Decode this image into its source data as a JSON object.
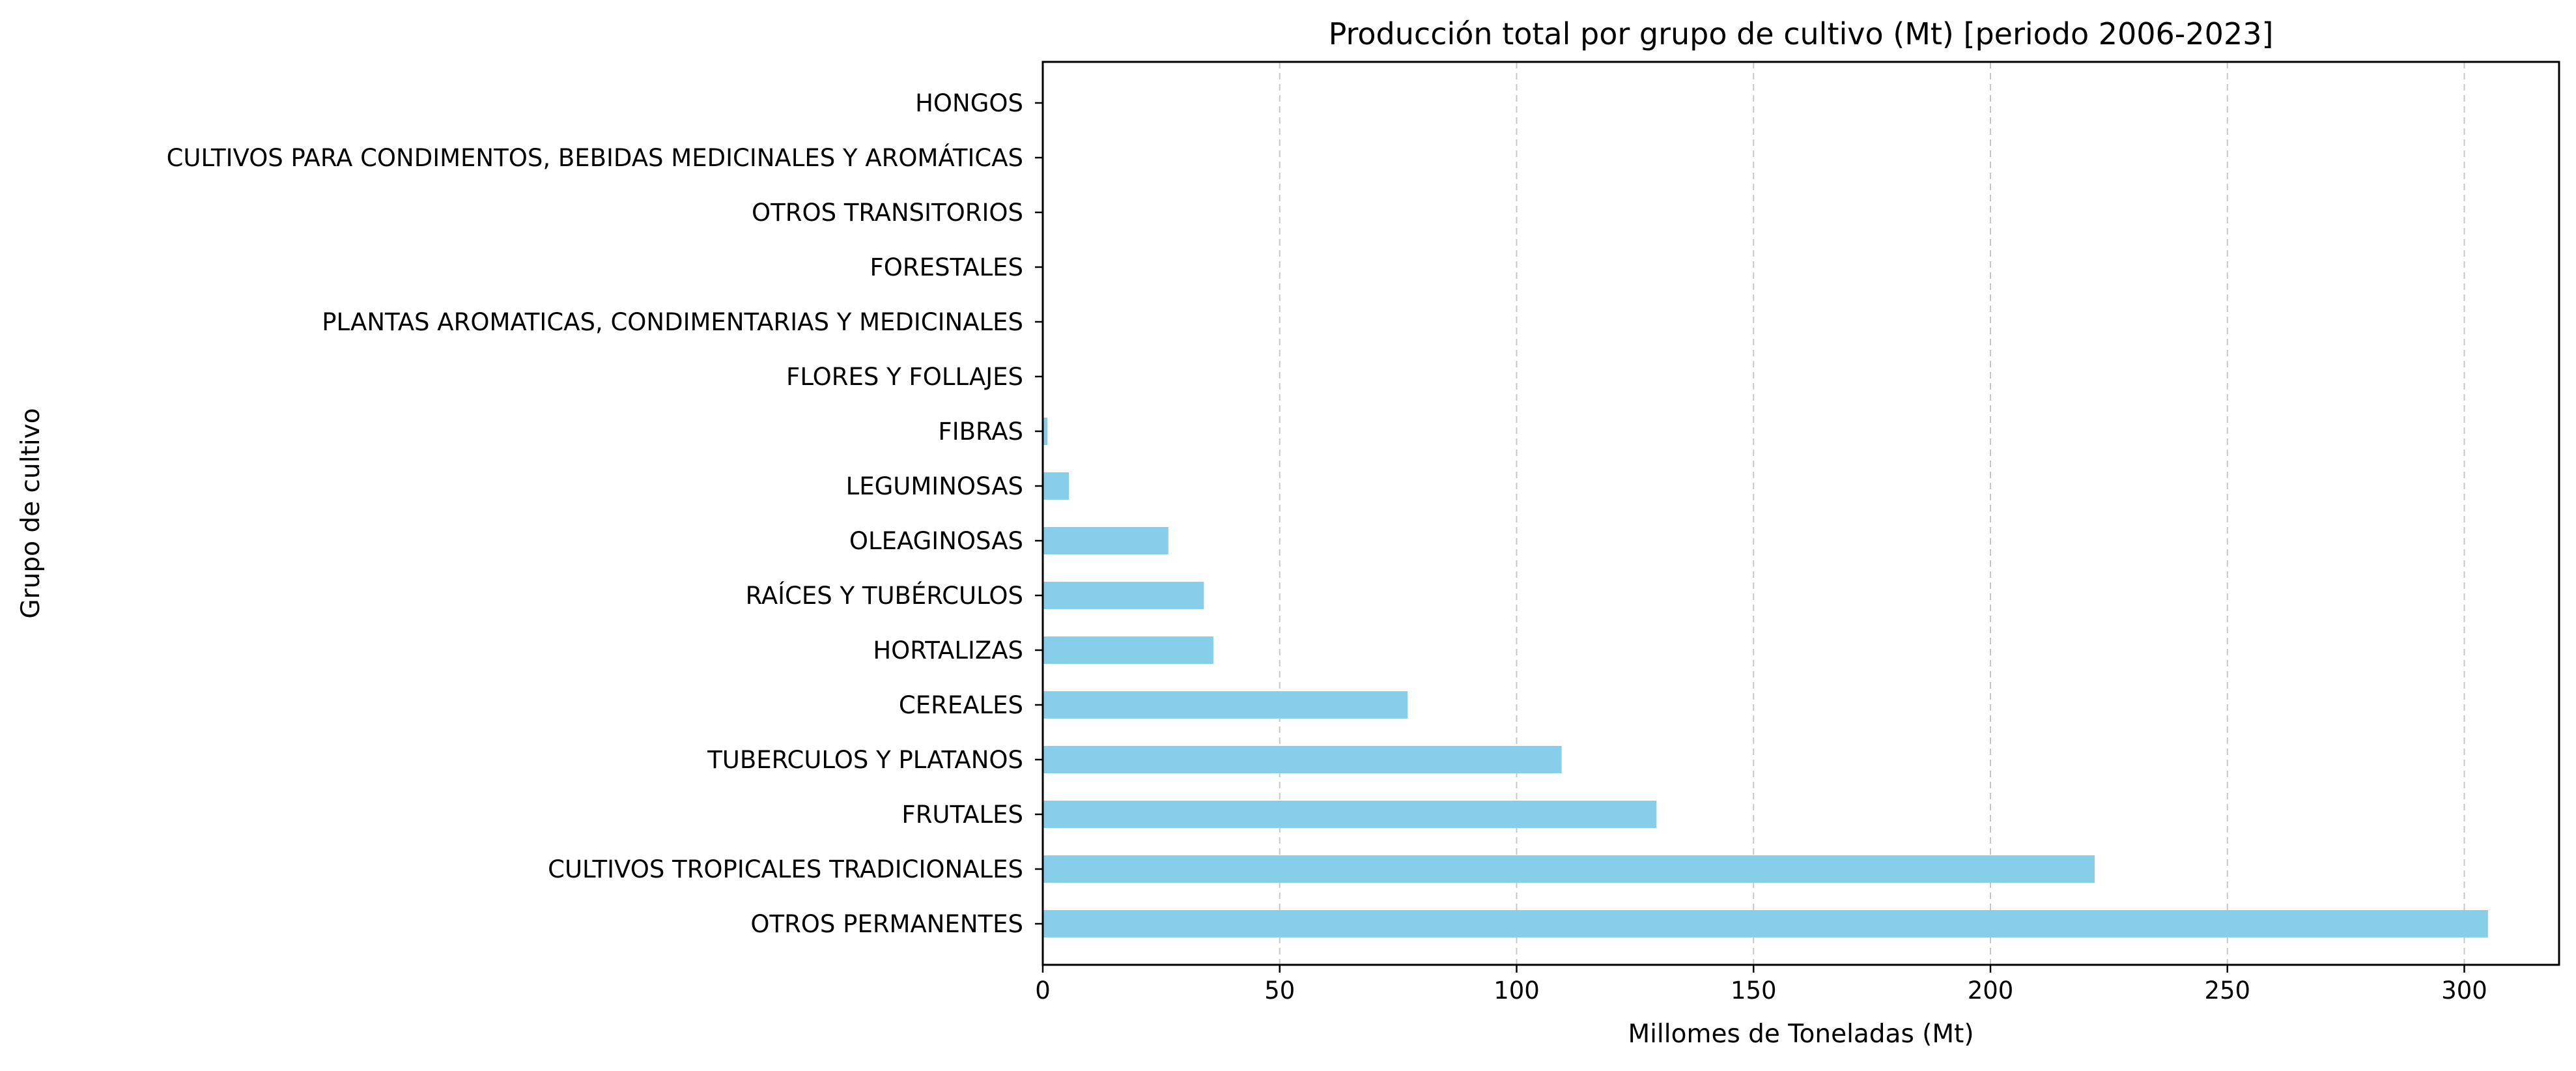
{
  "chart_data": {
    "type": "bar",
    "orientation": "horizontal",
    "title": "Producción total por grupo de cultivo (Mt) [periodo 2006-2023]",
    "xlabel": "Millomes de Toneladas (Mt)",
    "ylabel": "Grupo de cultivo",
    "xlim": [
      0,
      320
    ],
    "xticks": [
      0,
      50,
      100,
      150,
      200,
      250,
      300
    ],
    "grid": "x-dashed",
    "bar_color": "#87CEEB",
    "categories": [
      "OTROS PERMANENTES",
      "CULTIVOS TROPICALES TRADICIONALES",
      "FRUTALES",
      "TUBERCULOS Y PLATANOS",
      "CEREALES",
      "HORTALIZAS",
      "RAÍCES Y TUBÉRCULOS",
      "OLEAGINOSAS",
      "LEGUMINOSAS",
      "FIBRAS",
      "FLORES Y FOLLAJES",
      "PLANTAS AROMATICAS, CONDIMENTARIAS Y MEDICINALES",
      "FORESTALES",
      "OTROS TRANSITORIOS",
      "CULTIVOS PARA CONDIMENTOS, BEBIDAS MEDICINALES Y AROMÁTICAS",
      "HONGOS"
    ],
    "values": [
      305,
      222,
      129.5,
      109.5,
      77,
      36,
      34,
      26.5,
      5.5,
      1,
      0.1,
      0.08,
      0.05,
      0.03,
      0.02,
      0.01
    ]
  }
}
